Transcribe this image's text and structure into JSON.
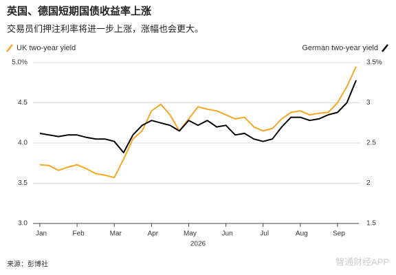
{
  "chart_data": {
    "type": "line",
    "title": "英国、德国短期国债收益率上涨",
    "subtitle": "交易员们押注利率将进一步上涨，涨幅也会更大。",
    "x_label": "2026",
    "source": "来源：彭博社",
    "watermark": "智通财经APP",
    "grid": true,
    "categories": [
      "Jan",
      null,
      null,
      null,
      "Feb",
      null,
      null,
      null,
      "Mar",
      null,
      null,
      null,
      "Apr",
      null,
      null,
      null,
      "May",
      null,
      null,
      null,
      "Jun",
      null,
      null,
      null,
      "Jul",
      null,
      null,
      null,
      "Aug",
      null,
      null,
      null,
      "Sep",
      null,
      null
    ],
    "ylim": [
      3,
      5
    ],
    "yticks": [
      {
        "value": 3,
        "label": "3.0"
      },
      {
        "value": 3.5,
        "label": "3.5"
      },
      {
        "value": 4,
        "label": "4.0"
      },
      {
        "value": 4.5,
        "label": "4.5"
      },
      {
        "value": 5,
        "label": "5.0%"
      }
    ],
    "y2lim": [
      1.5,
      3.5
    ],
    "y2ticks": [
      1.5,
      2,
      2.5,
      3,
      {
        "value": 3.5,
        "label": "3.5%"
      }
    ],
    "series": [
      {
        "name": "UK two-year yield",
        "color": "#f5a623",
        "values": [
          3.73,
          3.72,
          3.66,
          3.7,
          3.73,
          3.68,
          3.62,
          3.6,
          3.57,
          3.8,
          4.05,
          4.15,
          4.4,
          4.48,
          4.35,
          4.15,
          4.3,
          4.45,
          4.42,
          4.4,
          4.35,
          4.3,
          4.32,
          4.2,
          4.15,
          4.18,
          4.3,
          4.38,
          4.4,
          4.35,
          4.37,
          4.38,
          4.5,
          4.7,
          4.95
        ]
      },
      {
        "name": "German two-year yield",
        "color": "#000000",
        "axis": "y2",
        "values": [
          2.62,
          2.6,
          2.58,
          2.6,
          2.6,
          2.57,
          2.55,
          2.55,
          2.52,
          2.38,
          2.6,
          2.72,
          2.78,
          2.75,
          2.72,
          2.65,
          2.78,
          2.72,
          2.78,
          2.7,
          2.72,
          2.6,
          2.62,
          2.55,
          2.52,
          2.55,
          2.7,
          2.82,
          2.82,
          2.78,
          2.8,
          2.85,
          2.88,
          3.0,
          3.28
        ]
      }
    ]
  }
}
